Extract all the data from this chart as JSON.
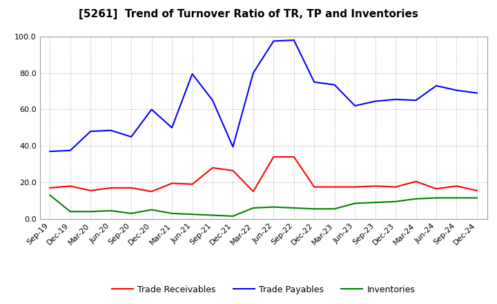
{
  "title": "[5261]  Trend of Turnover Ratio of TR, TP and Inventories",
  "x_labels": [
    "Sep-19",
    "Dec-19",
    "Mar-20",
    "Jun-20",
    "Sep-20",
    "Dec-20",
    "Mar-21",
    "Jun-21",
    "Sep-21",
    "Dec-21",
    "Mar-22",
    "Jun-22",
    "Sep-22",
    "Dec-22",
    "Mar-23",
    "Jun-23",
    "Sep-23",
    "Dec-23",
    "Mar-24",
    "Jun-24",
    "Sep-24",
    "Dec-24"
  ],
  "trade_receivables": [
    17.0,
    18.0,
    15.5,
    17.0,
    17.0,
    15.0,
    19.5,
    19.0,
    28.0,
    26.5,
    15.0,
    34.0,
    34.0,
    17.5,
    17.5,
    17.5,
    18.0,
    17.5,
    20.5,
    16.5,
    18.0,
    15.5
  ],
  "trade_payables": [
    37.0,
    37.5,
    48.0,
    48.5,
    45.0,
    60.0,
    50.0,
    79.5,
    65.0,
    39.5,
    80.0,
    97.5,
    98.0,
    75.0,
    73.5,
    62.0,
    64.5,
    65.5,
    65.0,
    73.0,
    70.5,
    69.0
  ],
  "inventories": [
    13.0,
    4.0,
    4.0,
    4.5,
    3.0,
    5.0,
    3.0,
    2.5,
    2.0,
    1.5,
    6.0,
    6.5,
    6.0,
    5.5,
    5.5,
    8.5,
    9.0,
    9.5,
    11.0,
    11.5,
    11.5,
    11.5
  ],
  "ylim": [
    0.0,
    100.0
  ],
  "yticks": [
    0.0,
    20.0,
    40.0,
    60.0,
    80.0,
    100.0
  ],
  "color_tr": "#ff0000",
  "color_tp": "#0000ff",
  "color_inv": "#008000",
  "bg_color": "#ffffff",
  "grid_color": "#888888",
  "legend_labels": [
    "Trade Receivables",
    "Trade Payables",
    "Inventories"
  ]
}
